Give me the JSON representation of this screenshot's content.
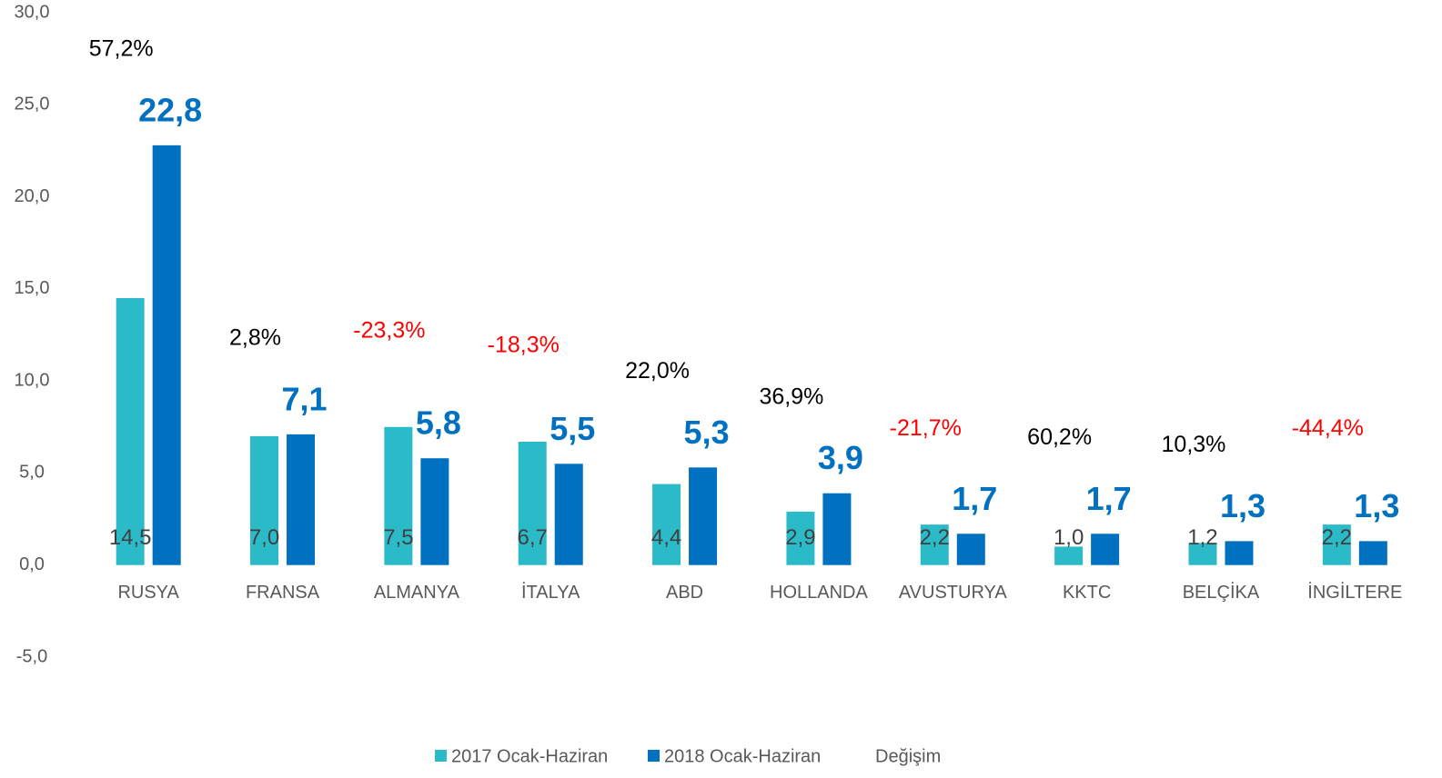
{
  "chart_data": {
    "type": "bar",
    "categories": [
      "RUSYA",
      "FRANSA",
      "ALMANYA",
      "İTALYA",
      "ABD",
      "HOLLANDA",
      "AVUSTURYA",
      "KKTC",
      "BELÇİKA",
      "İNGİLTERE"
    ],
    "series": [
      {
        "name": "2017 Ocak-Haziran",
        "color": "#2bbac8",
        "values": [
          14.5,
          7.0,
          7.5,
          6.7,
          4.4,
          2.9,
          2.2,
          1.0,
          1.2,
          2.2
        ],
        "value_labels": [
          "14,5",
          "7,0",
          "7,5",
          "6,7",
          "4,4",
          "2,9",
          "2,2",
          "1,0",
          "1,2",
          "2,2"
        ]
      },
      {
        "name": "2018 Ocak-Haziran",
        "color": "#0070c0",
        "values": [
          22.8,
          7.1,
          5.8,
          5.5,
          5.3,
          3.9,
          1.7,
          1.7,
          1.3,
          1.3
        ],
        "value_labels": [
          "22,8",
          "7,1",
          "5,8",
          "5,5",
          "5,3",
          "3,9",
          "1,7",
          "1,7",
          "1,3",
          "1,3"
        ]
      },
      {
        "name": "Değişim",
        "color": "#000000",
        "negative_color": "#ff0000",
        "values": [
          57.2,
          2.8,
          -23.3,
          -18.3,
          22.0,
          36.9,
          -21.7,
          60.2,
          10.3,
          -44.4
        ],
        "value_labels": [
          "57,2%",
          "2,8%",
          "-23,3%",
          "-18,3%",
          "22,0%",
          "36,9%",
          "-21,7%",
          "60,2%",
          "10,3%",
          "-44,4%"
        ]
      }
    ],
    "ylim": [
      -5,
      30
    ],
    "yticks": [
      {
        "value": -5,
        "label": "-5,0"
      },
      {
        "value": 0,
        "label": "0,0"
      },
      {
        "value": 5,
        "label": "5,0"
      },
      {
        "value": 10,
        "label": "10,0"
      },
      {
        "value": 15,
        "label": "15,0"
      },
      {
        "value": 20,
        "label": "20,0"
      },
      {
        "value": 25,
        "label": "25,0"
      },
      {
        "value": 30,
        "label": "30,0"
      }
    ],
    "grid": false,
    "legend": "bottom"
  }
}
